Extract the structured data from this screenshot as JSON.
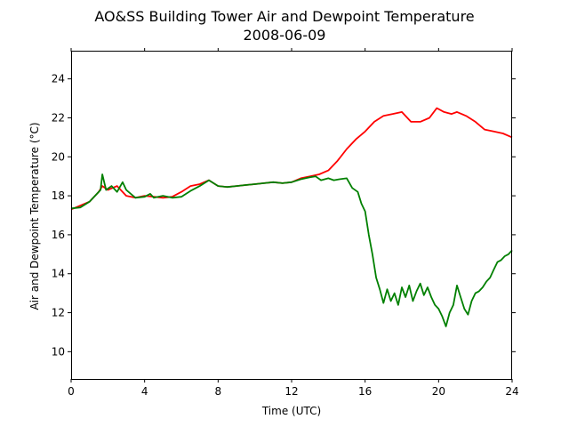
{
  "chart_data": {
    "type": "line",
    "title": "AO&SS Building Tower Air and Dewpoint Temperature",
    "subtitle": "2008-06-09",
    "xlabel": "Time (UTC)",
    "ylabel": "Air and Dewpoint Temperature (°C)",
    "xlim": [
      0,
      24
    ],
    "ylim": [
      8.6,
      25.4
    ],
    "xticks": [
      0,
      4,
      8,
      12,
      16,
      20,
      24
    ],
    "yticks": [
      10,
      12,
      14,
      16,
      18,
      20,
      22,
      24
    ],
    "grid": false,
    "series": [
      {
        "color": "#ff0000",
        "x": [
          0,
          1,
          1.5,
          1.7,
          2,
          2.5,
          3,
          3.5,
          4,
          4.5,
          5,
          5.5,
          6,
          6.5,
          7,
          7.5,
          8,
          8.5,
          9,
          9.5,
          10,
          10.5,
          11,
          11.5,
          12,
          12.5,
          13,
          13.5,
          14,
          14.5,
          15,
          15.5,
          16,
          16.5,
          17,
          17.5,
          18,
          18.5,
          19,
          19.5,
          19.9,
          20.3,
          20.7,
          21,
          21.5,
          22,
          22.5,
          23,
          23.5,
          24
        ],
        "y": [
          17.3,
          17.7,
          18.2,
          18.5,
          18.3,
          18.5,
          18.0,
          17.9,
          18.0,
          17.95,
          17.9,
          17.95,
          18.2,
          18.5,
          18.6,
          18.8,
          18.5,
          18.45,
          18.5,
          18.55,
          18.6,
          18.65,
          18.7,
          18.65,
          18.7,
          18.9,
          19.0,
          19.1,
          19.3,
          19.8,
          20.4,
          20.9,
          21.3,
          21.8,
          22.1,
          22.2,
          22.3,
          21.8,
          21.8,
          22.0,
          22.5,
          22.3,
          22.2,
          22.3,
          22.1,
          21.8,
          21.4,
          21.3,
          21.2,
          21.0
        ]
      },
      {
        "color": "#008000",
        "x": [
          0,
          0.5,
          1,
          1.3,
          1.6,
          1.7,
          1.9,
          2.2,
          2.5,
          2.8,
          3,
          3.5,
          4,
          4.3,
          4.5,
          5,
          5.5,
          6,
          6.5,
          7,
          7.5,
          8,
          8.5,
          9,
          9.5,
          10,
          10.5,
          11,
          11.5,
          12,
          12.5,
          13,
          13.3,
          13.6,
          14,
          14.3,
          14.6,
          15,
          15.3,
          15.6,
          15.8,
          16,
          16.2,
          16.4,
          16.6,
          16.8,
          17,
          17.2,
          17.4,
          17.6,
          17.8,
          18,
          18.2,
          18.4,
          18.6,
          18.8,
          19,
          19.2,
          19.4,
          19.6,
          19.8,
          20,
          20.2,
          20.4,
          20.6,
          20.8,
          21,
          21.2,
          21.4,
          21.6,
          21.8,
          22,
          22.2,
          22.4,
          22.6,
          22.8,
          23,
          23.2,
          23.4,
          23.6,
          23.8,
          24
        ],
        "y": [
          17.35,
          17.4,
          17.7,
          18.0,
          18.3,
          19.1,
          18.3,
          18.5,
          18.2,
          18.7,
          18.3,
          17.9,
          17.95,
          18.1,
          17.9,
          18.0,
          17.9,
          17.95,
          18.25,
          18.5,
          18.8,
          18.5,
          18.45,
          18.5,
          18.55,
          18.6,
          18.65,
          18.7,
          18.65,
          18.7,
          18.85,
          18.95,
          19.0,
          18.8,
          18.9,
          18.8,
          18.85,
          18.9,
          18.4,
          18.2,
          17.6,
          17.2,
          16.0,
          15.0,
          13.8,
          13.2,
          12.5,
          13.2,
          12.6,
          13.0,
          12.4,
          13.3,
          12.8,
          13.4,
          12.6,
          13.1,
          13.5,
          12.9,
          13.3,
          12.8,
          12.4,
          12.2,
          11.8,
          11.3,
          12.0,
          12.4,
          13.4,
          12.8,
          12.2,
          11.9,
          12.6,
          13.0,
          13.1,
          13.3,
          13.6,
          13.8,
          14.2,
          14.6,
          14.7,
          14.9,
          15.0,
          15.2
        ]
      }
    ]
  }
}
